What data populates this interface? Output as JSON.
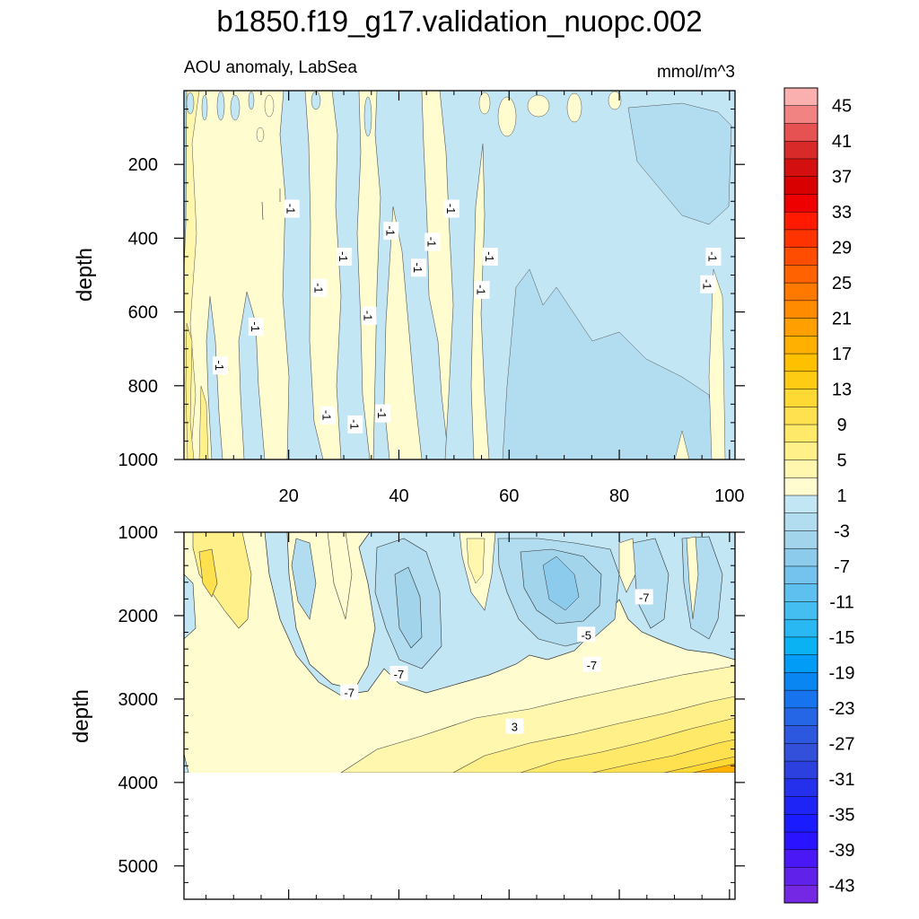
{
  "figure": {
    "title": "b1850.f19_g17.validation_nuopc.002",
    "left_subtitle": "AOU anomaly, LabSea",
    "right_subtitle": "mmol/m^3"
  },
  "chart_data": [
    {
      "type": "contour",
      "panel": "upper",
      "ylabel": "depth",
      "xlabel": "",
      "xlim": [
        1,
        101
      ],
      "ylim": [
        0,
        1000
      ],
      "y_reversed": true,
      "x_ticks": [
        20,
        40,
        60,
        80,
        100
      ],
      "y_ticks": [
        200,
        400,
        600,
        800,
        1000
      ],
      "contour_labels": [
        {
          "x": 20.5,
          "y": 320,
          "text": "-1"
        },
        {
          "x": 14,
          "y": 640,
          "text": "-1"
        },
        {
          "x": 7.5,
          "y": 745,
          "text": "-1"
        },
        {
          "x": 25.5,
          "y": 535,
          "text": "-1"
        },
        {
          "x": 30,
          "y": 450,
          "text": "-1"
        },
        {
          "x": 34.5,
          "y": 610,
          "text": "-1"
        },
        {
          "x": 38.5,
          "y": 380,
          "text": "-1"
        },
        {
          "x": 43.5,
          "y": 480,
          "text": "-1"
        },
        {
          "x": 46,
          "y": 410,
          "text": "-1"
        },
        {
          "x": 49.5,
          "y": 320,
          "text": "-1"
        },
        {
          "x": 55,
          "y": 540,
          "text": "-1"
        },
        {
          "x": 56.5,
          "y": 450,
          "text": "-1"
        },
        {
          "x": 27,
          "y": 880,
          "text": "-1"
        },
        {
          "x": 32,
          "y": 905,
          "text": "-1"
        },
        {
          "x": 37,
          "y": 875,
          "text": "-1"
        },
        {
          "x": 96,
          "y": 525,
          "text": "-1"
        },
        {
          "x": 97,
          "y": 450,
          "text": "-1"
        }
      ]
    },
    {
      "type": "contour",
      "panel": "lower",
      "ylabel": "depth",
      "xlabel": "",
      "xlim": [
        1,
        101
      ],
      "ylim": [
        1000,
        5400
      ],
      "y_reversed": true,
      "x_ticks": [
        20,
        40,
        60,
        80,
        100
      ],
      "y_ticks": [
        1000,
        2000,
        3000,
        4000,
        5000
      ],
      "data_bottom_depth": 3870,
      "contour_labels": [
        {
          "x": 31,
          "y": 2920,
          "text": "-7"
        },
        {
          "x": 40,
          "y": 2700,
          "text": "-7"
        },
        {
          "x": 75,
          "y": 2590,
          "text": "-7"
        },
        {
          "x": 84.5,
          "y": 1780,
          "text": "-7"
        },
        {
          "x": 74,
          "y": 2230,
          "text": "-5"
        },
        {
          "x": 61,
          "y": 3330,
          "text": "3"
        }
      ]
    }
  ],
  "colorbar": {
    "levels": [
      "45",
      "41",
      "37",
      "33",
      "29",
      "25",
      "21",
      "17",
      "13",
      "9",
      "5",
      "1",
      "-3",
      "-7",
      "-11",
      "-15",
      "-19",
      "-23",
      "-27",
      "-31",
      "-35",
      "-39",
      "-43"
    ],
    "colors": [
      "#fbb0b0",
      "#f28383",
      "#e65151",
      "#d92a2a",
      "#d40f0f",
      "#d80000",
      "#ef0000",
      "#ff1a00",
      "#ff3300",
      "#ff4d00",
      "#ff6200",
      "#ff7800",
      "#ff8c00",
      "#ff9f00",
      "#ffb000",
      "#ffc000",
      "#ffcc14",
      "#ffd933",
      "#ffe14f",
      "#ffe968",
      "#fff08a",
      "#fff7ad",
      "#fffdd0",
      "#c2e6f4",
      "#b2ddf0",
      "#a2d4ec",
      "#8ccbec",
      "#74c3ee",
      "#5ec0ef",
      "#44bdf1",
      "#2ab8f2",
      "#0ab2f4",
      "#009cf6",
      "#0a86f2",
      "#1874ee",
      "#2466e6",
      "#2c58e0",
      "#3250da",
      "#2c40e0",
      "#2430ec",
      "#1e24f6",
      "#1a1cff",
      "#2a14ff",
      "#4a18f4",
      "#6022ea",
      "#7428e4"
    ]
  }
}
